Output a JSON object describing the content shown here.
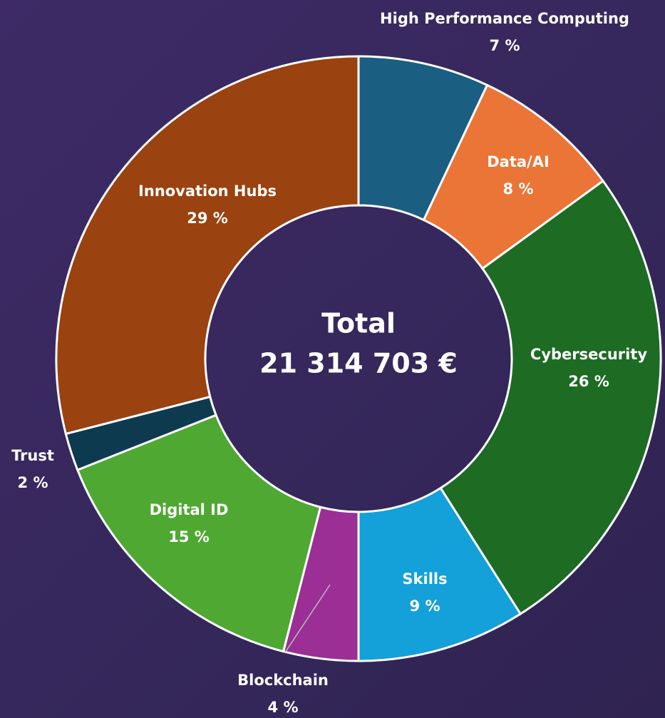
{
  "chart_data": {
    "type": "donut",
    "center_title": "Total",
    "center_value": "21 314 703 €",
    "categories": [
      "High Performance Computing",
      "Data/AI",
      "Cybersecurity",
      "Skills",
      "Blockchain",
      "Digital ID",
      "Trust",
      "Innovation Hubs"
    ],
    "values": [
      7,
      8,
      26,
      9,
      4,
      15,
      2,
      29
    ],
    "value_labels": [
      "7 %",
      "8 %",
      "26 %",
      "9 %",
      "4 %",
      "15 %",
      "2 %",
      "29 %"
    ],
    "colors": [
      "#1a5e82",
      "#ea7536",
      "#1e6b24",
      "#14a0d8",
      "#9b2f96",
      "#4fa832",
      "#0e3a4f",
      "#9a4210"
    ]
  }
}
